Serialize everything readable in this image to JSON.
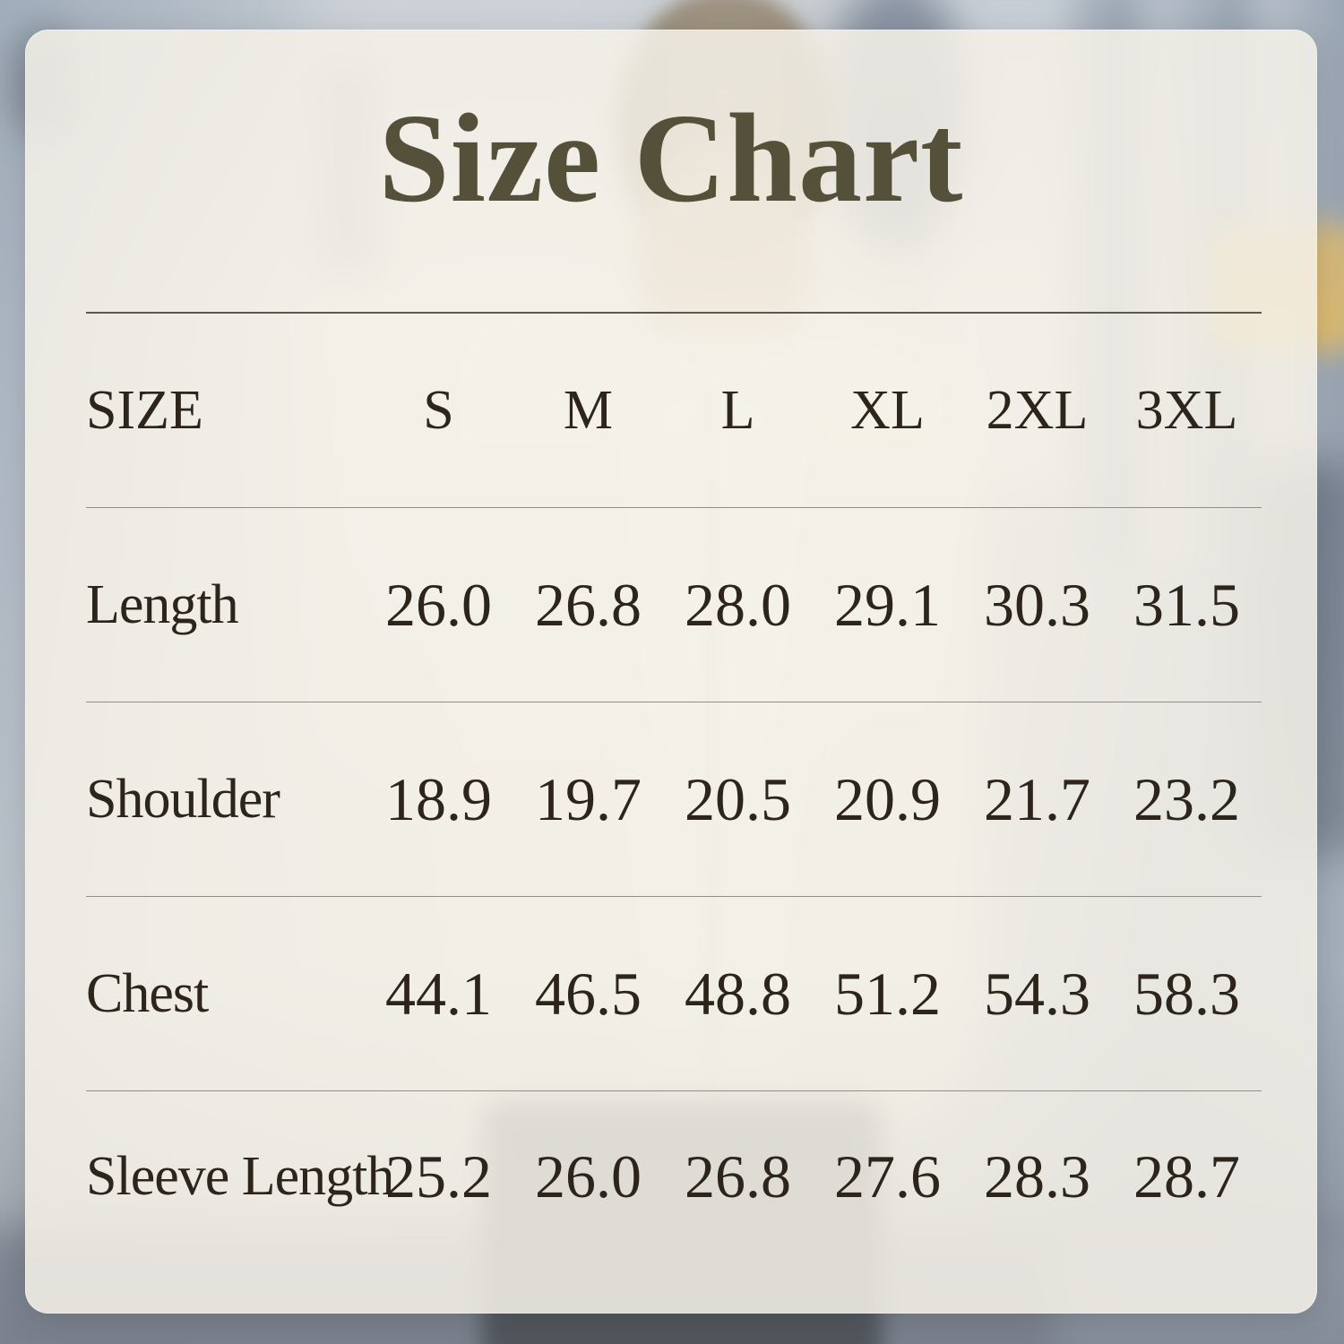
{
  "title": "Size Chart",
  "chart_data": {
    "type": "table",
    "title": "Size Chart",
    "columns": [
      "SIZE",
      "S",
      "M",
      "L",
      "XL",
      "2XL",
      "3XL"
    ],
    "rows": [
      {
        "label": "Length",
        "values": [
          "26.0",
          "26.8",
          "28.0",
          "29.1",
          "30.3",
          "31.5"
        ]
      },
      {
        "label": "Shoulder",
        "values": [
          "18.9",
          "19.7",
          "20.5",
          "20.9",
          "21.7",
          "23.2"
        ]
      },
      {
        "label": "Chest",
        "values": [
          "44.1",
          "46.5",
          "48.8",
          "51.2",
          "54.3",
          "58.3"
        ]
      },
      {
        "label": "Sleeve Length",
        "values": [
          "25.2",
          "26.0",
          "26.8",
          "27.6",
          "28.3",
          "28.7"
        ]
      }
    ]
  },
  "colors": {
    "title_text": "#55503A",
    "table_text": "#2D241B",
    "panel_background": "#F2EFE7",
    "divider_strong": "#5A584F",
    "divider_light": "#908E85"
  }
}
